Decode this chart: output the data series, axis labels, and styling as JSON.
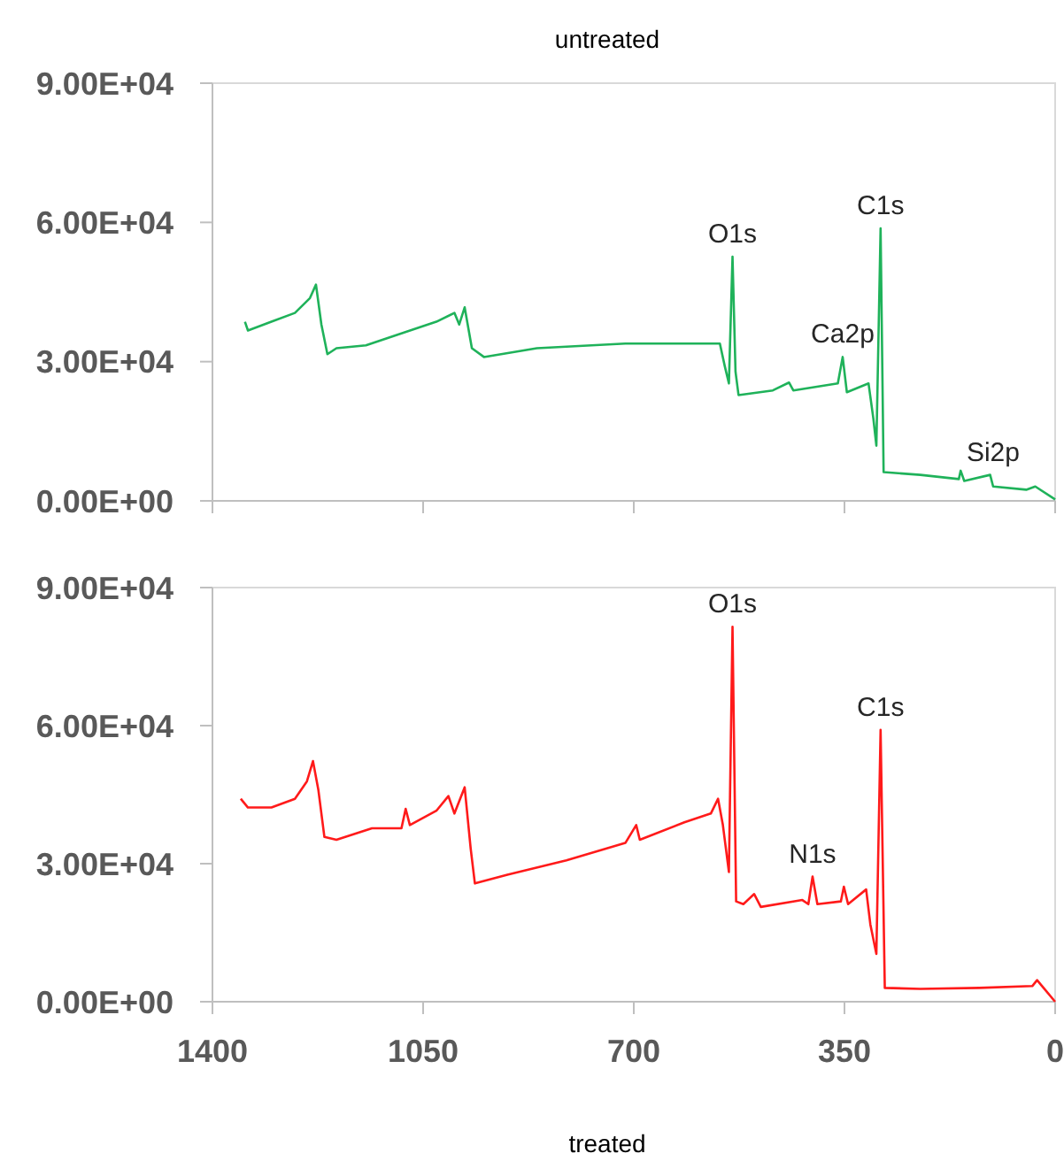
{
  "chart_data": [
    {
      "type": "line",
      "title": "untreated",
      "x": [
        1346,
        1341,
        1302,
        1263,
        1238,
        1228,
        1219,
        1209,
        1194,
        1145,
        1086,
        1028,
        998,
        990,
        981,
        969,
        949,
        861,
        714,
        557,
        549,
        542,
        536,
        531,
        526,
        469,
        442,
        435,
        361,
        353,
        346,
        310,
        302,
        297,
        290,
        285,
        224,
        160,
        157,
        151,
        108,
        103,
        48,
        33,
        0
      ],
      "series": [
        {
          "color": "#1fb25a",
          "values": [
            38600,
            36700,
            38600,
            40500,
            43700,
            46600,
            38000,
            31600,
            32900,
            33500,
            36100,
            38600,
            40500,
            38000,
            41700,
            32900,
            31000,
            32900,
            33900,
            33900,
            29100,
            25300,
            52600,
            27800,
            22800,
            23800,
            25500,
            23800,
            25300,
            31000,
            23400,
            25300,
            17700,
            11900,
            58700,
            6200,
            5600,
            4700,
            6500,
            4300,
            5600,
            3100,
            2400,
            3100,
            300
          ]
        }
      ],
      "xlim": [
        1400,
        0
      ],
      "xticks": [
        {
          "value": 1400,
          "label": null
        },
        {
          "value": 1050,
          "label": null
        },
        {
          "value": 700,
          "label": null
        },
        {
          "value": 350,
          "label": null
        },
        {
          "value": 0,
          "label": null
        }
      ],
      "ylim": [
        0,
        90000
      ],
      "yticks": [
        {
          "value": 0,
          "label": "0.00E+00"
        },
        {
          "value": 30000,
          "label": "3.00E+04"
        },
        {
          "value": 60000,
          "label": "6.00E+04"
        },
        {
          "value": 90000,
          "label": "9.00E+04"
        }
      ],
      "tick_labels": "y",
      "grid": false,
      "annotations": [
        {
          "text": "O1s",
          "x": 536,
          "y": 52600
        },
        {
          "text": "Ca2p",
          "x": 353,
          "y": 31000
        },
        {
          "text": "C1s",
          "x": 290,
          "y": 58700
        },
        {
          "text": "Si2p",
          "x": 103,
          "y": 5600
        }
      ]
    },
    {
      "type": "line",
      "title": "treated",
      "x": [
        1353,
        1341,
        1302,
        1263,
        1243,
        1233,
        1224,
        1214,
        1194,
        1135,
        1086,
        1079,
        1072,
        1028,
        1008,
        998,
        981,
        971,
        964,
        910,
        812,
        714,
        696,
        690,
        616,
        572,
        560,
        552,
        542,
        536,
        530,
        518,
        500,
        489,
        420,
        410,
        403,
        395,
        356,
        351,
        344,
        314,
        307,
        297,
        290,
        283,
        224,
        126,
        38,
        30,
        18,
        0
      ],
      "series": [
        {
          "color": "#ff1a1a",
          "values": [
            44100,
            42200,
            42200,
            44100,
            47900,
            52300,
            46000,
            35800,
            35200,
            37700,
            37700,
            41900,
            38400,
            41500,
            44700,
            40900,
            46600,
            33300,
            25700,
            27600,
            30700,
            34500,
            38400,
            35200,
            39000,
            40900,
            44100,
            38400,
            28200,
            81500,
            21800,
            21200,
            23400,
            20600,
            22100,
            21200,
            27200,
            21200,
            21800,
            25000,
            21200,
            24400,
            16800,
            10400,
            59100,
            3000,
            2800,
            3000,
            3400,
            4700,
            2800,
            0
          ]
        }
      ],
      "xlim": [
        1400,
        0
      ],
      "xticks": [
        1400,
        1050,
        700,
        350,
        0
      ],
      "ylim": [
        0,
        90000
      ],
      "yticks": [
        {
          "value": 0,
          "label": "0.00E+00"
        },
        {
          "value": 30000,
          "label": "3.00E+04"
        },
        {
          "value": 60000,
          "label": "6.00E+04"
        },
        {
          "value": 90000,
          "label": "9.00E+04"
        }
      ],
      "grid": false,
      "annotations": [
        {
          "text": "O1s",
          "x": 536,
          "y": 81500
        },
        {
          "text": "N1s",
          "x": 403,
          "y": 27200
        },
        {
          "text": "C1s",
          "x": 290,
          "y": 59100
        }
      ]
    }
  ]
}
